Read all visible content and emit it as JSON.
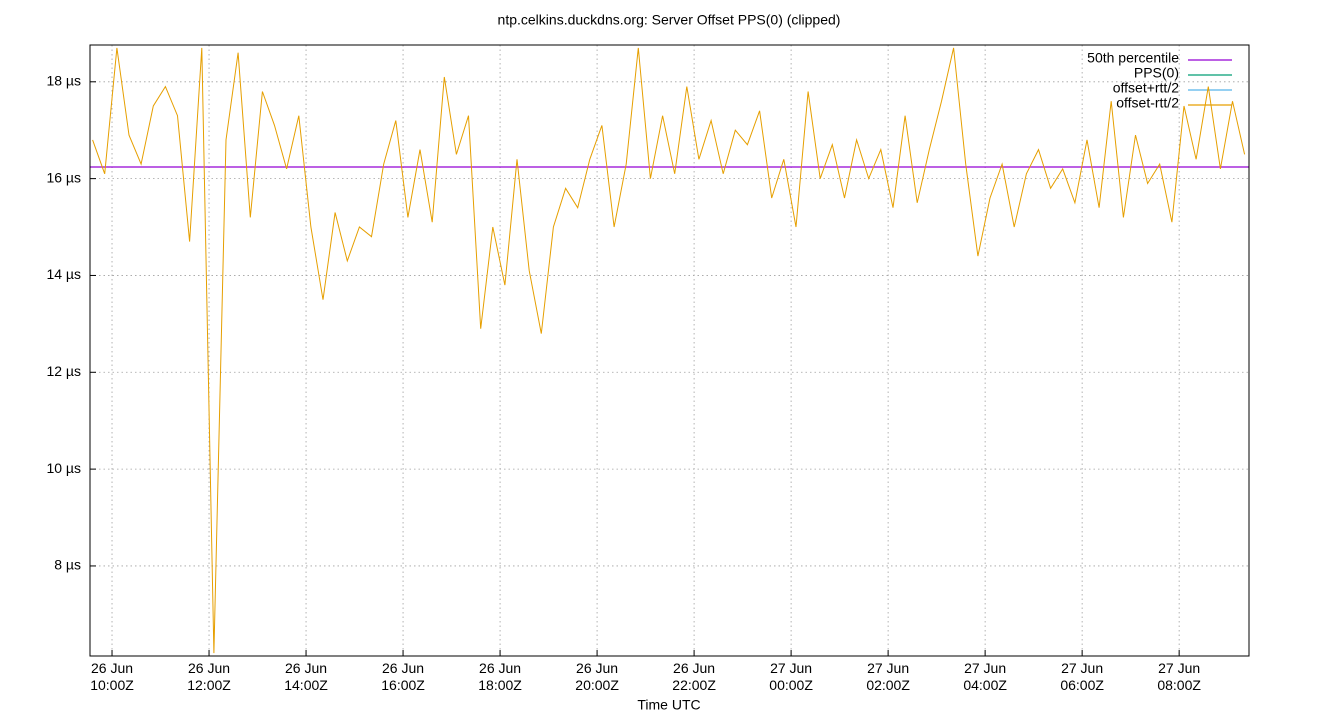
{
  "chart_data": {
    "type": "line",
    "title": "ntp.celkins.duckdns.org: Server Offset PPS(0) (clipped)",
    "x_label": "Time UTC",
    "xlim": [
      9.546,
      33.44
    ],
    "ylim": [
      6.14,
      18.76
    ],
    "xticks": [
      {
        "value": 10,
        "label": "26 Jun\n10:00Z"
      },
      {
        "value": 12,
        "label": "26 Jun\n12:00Z"
      },
      {
        "value": 14,
        "label": "26 Jun\n14:00Z"
      },
      {
        "value": 16,
        "label": "26 Jun\n16:00Z"
      },
      {
        "value": 18,
        "label": "26 Jun\n18:00Z"
      },
      {
        "value": 20,
        "label": "26 Jun\n20:00Z"
      },
      {
        "value": 22,
        "label": "26 Jun\n22:00Z"
      },
      {
        "value": 24,
        "label": "27 Jun\n00:00Z"
      },
      {
        "value": 26,
        "label": "27 Jun\n02:00Z"
      },
      {
        "value": 28,
        "label": "27 Jun\n04:00Z"
      },
      {
        "value": 30,
        "label": "27 Jun\n06:00Z"
      },
      {
        "value": 32,
        "label": "27 Jun\n08:00Z"
      }
    ],
    "yticks": [
      {
        "value": 8,
        "label": "8 µs"
      },
      {
        "value": 10,
        "label": "10 µs"
      },
      {
        "value": 12,
        "label": "12 µs"
      },
      {
        "value": 14,
        "label": "14 µs"
      },
      {
        "value": 16,
        "label": "16 µs"
      },
      {
        "value": 18,
        "label": "18 µs"
      }
    ],
    "grid": true,
    "legend": "top-right",
    "x": [
      9.6,
      9.85,
      10.1,
      10.35,
      10.6,
      10.85,
      11.1,
      11.35,
      11.6,
      11.85,
      12.1,
      12.35,
      12.6,
      12.85,
      13.1,
      13.35,
      13.6,
      13.85,
      14.1,
      14.35,
      14.6,
      14.85,
      15.1,
      15.35,
      15.6,
      15.85,
      16.1,
      16.35,
      16.6,
      16.85,
      17.1,
      17.35,
      17.6,
      17.85,
      18.1,
      18.35,
      18.6,
      18.85,
      19.1,
      19.35,
      19.6,
      19.85,
      20.1,
      20.35,
      20.6,
      20.85,
      21.1,
      21.35,
      21.6,
      21.85,
      22.1,
      22.35,
      22.6,
      22.85,
      23.1,
      23.35,
      23.6,
      23.85,
      24.1,
      24.35,
      24.6,
      24.85,
      25.1,
      25.35,
      25.6,
      25.85,
      26.1,
      26.35,
      26.6,
      26.85,
      27.1,
      27.35,
      27.6,
      27.85,
      28.1,
      28.35,
      28.6,
      28.85,
      29.1,
      29.35,
      29.6,
      29.85,
      30.1,
      30.35,
      30.6,
      30.85,
      31.1,
      31.35,
      31.6,
      31.85,
      32.1,
      32.35,
      32.6,
      32.85,
      33.1,
      33.35
    ],
    "series": [
      {
        "name": "50th percentile",
        "color": "#9400d3",
        "value": 16.24
      },
      {
        "name": "PPS(0)",
        "color": "#009e73"
      },
      {
        "name": "offset+rtt/2",
        "color": "#56b4e9"
      },
      {
        "name": "offset-rtt/2",
        "color": "#e69f00",
        "values": [
          16.8,
          16.1,
          18.7,
          16.9,
          16.3,
          17.5,
          17.9,
          17.3,
          14.7,
          18.7,
          6.2,
          16.8,
          18.6,
          15.2,
          17.8,
          17.1,
          16.2,
          17.3,
          15.0,
          13.5,
          15.3,
          14.3,
          15.0,
          14.8,
          16.3,
          17.2,
          15.2,
          16.6,
          15.1,
          18.1,
          16.5,
          17.3,
          12.9,
          15.0,
          13.8,
          16.4,
          14.1,
          12.8,
          15.0,
          15.8,
          15.4,
          16.4,
          17.1,
          15.0,
          16.3,
          18.7,
          16.0,
          17.3,
          16.1,
          17.9,
          16.4,
          17.2,
          16.1,
          17.0,
          16.7,
          17.4,
          15.6,
          16.4,
          15.0,
          17.8,
          16.0,
          16.7,
          15.6,
          16.8,
          16.0,
          16.6,
          15.4,
          17.3,
          15.5,
          16.6,
          17.6,
          18.7,
          16.3,
          14.4,
          15.6,
          16.3,
          15.0,
          16.1,
          16.6,
          15.8,
          16.2,
          15.5,
          16.8,
          15.4,
          17.6,
          15.2,
          16.9,
          15.9,
          16.3,
          15.1,
          17.5,
          16.4,
          17.9,
          16.2,
          17.6,
          16.5
        ]
      }
    ]
  }
}
